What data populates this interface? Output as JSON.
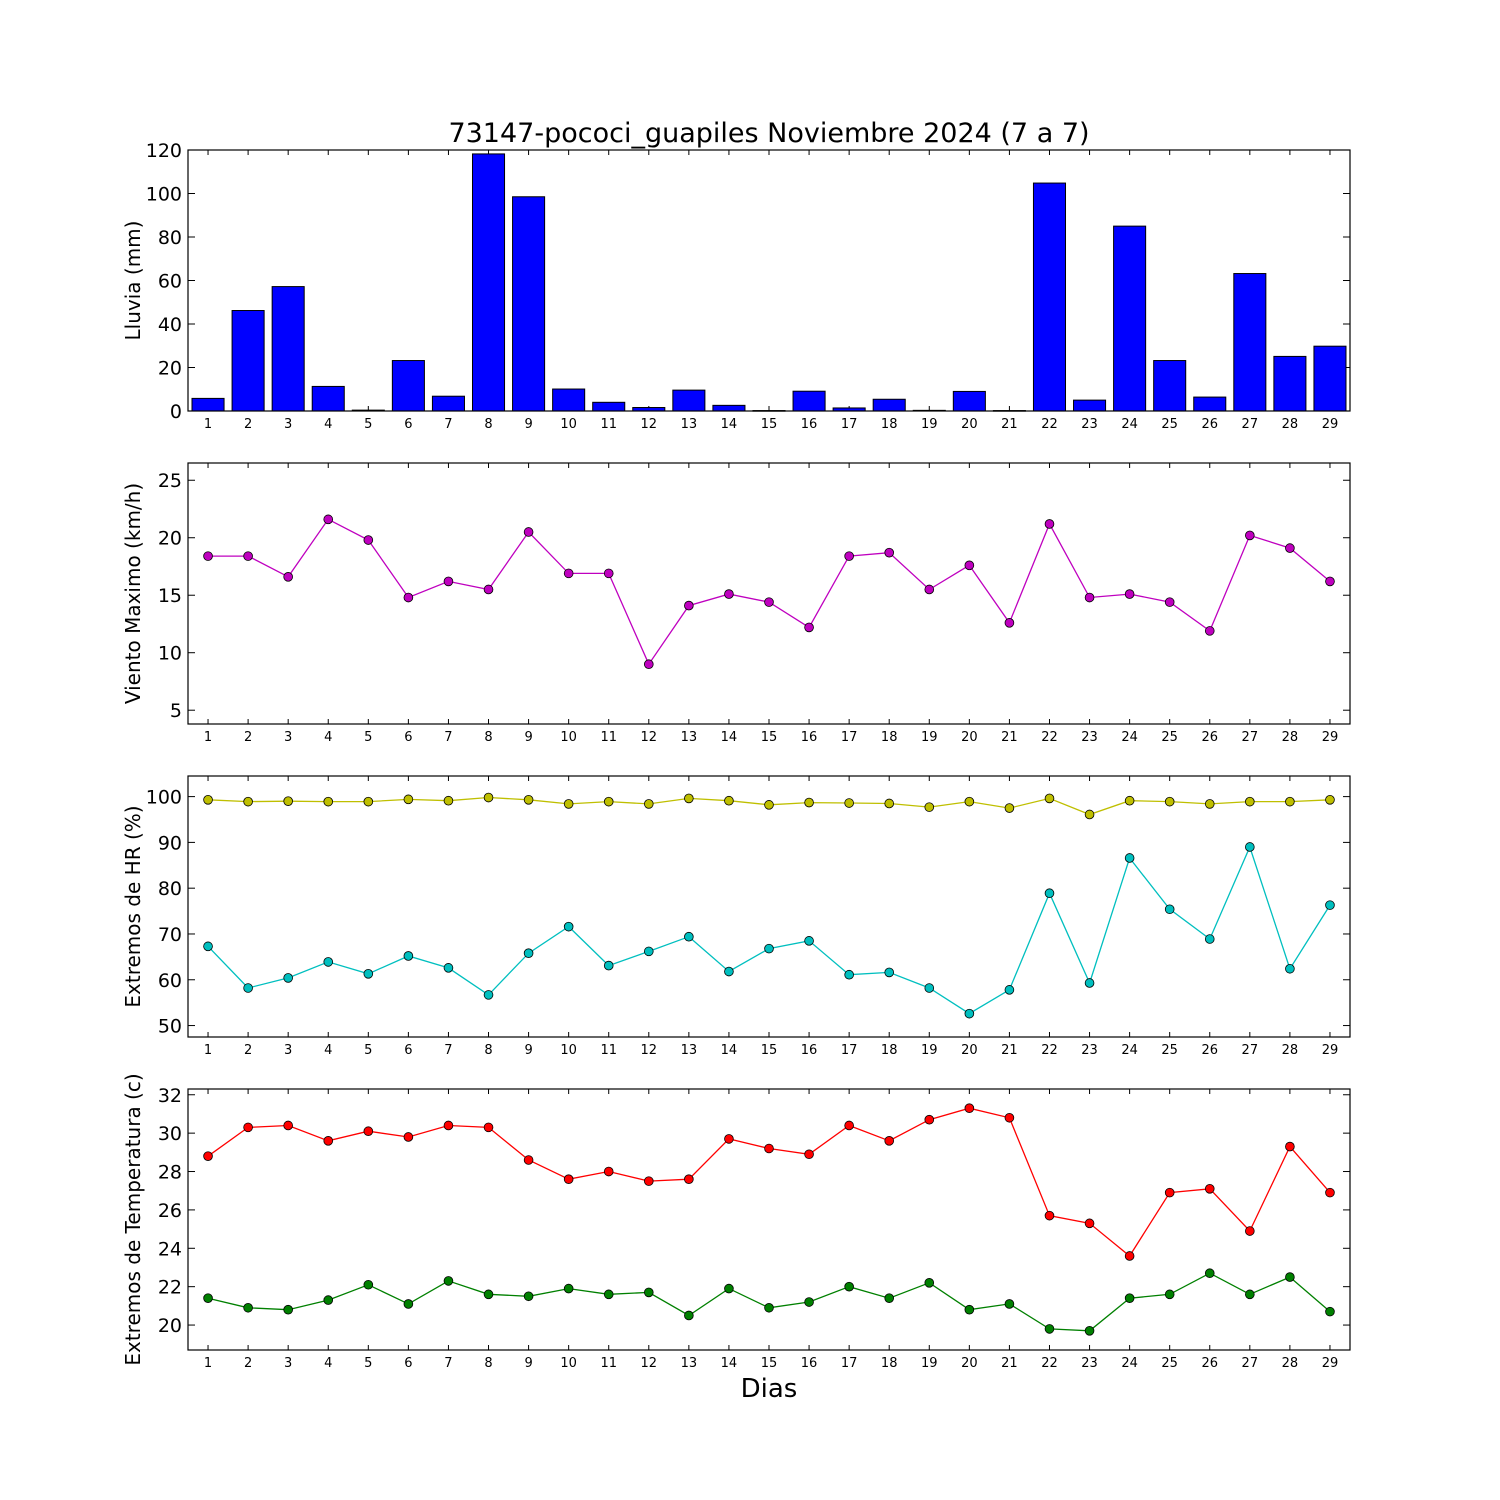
{
  "figure": {
    "title": "73147-pococi_guapiles Noviembre 2024  (7 a 7)",
    "xlabel": "Dias"
  },
  "chart_data": [
    {
      "type": "bar",
      "ylabel": "Lluvia (mm)",
      "ylim": [
        0,
        120
      ],
      "yticks": [
        0,
        20,
        40,
        60,
        80,
        100,
        120
      ],
      "categories": [
        "1",
        "2",
        "3",
        "4",
        "5",
        "6",
        "7",
        "8",
        "9",
        "10",
        "11",
        "12",
        "13",
        "14",
        "15",
        "16",
        "17",
        "18",
        "19",
        "20",
        "21",
        "22",
        "23",
        "24",
        "25",
        "26",
        "27",
        "28",
        "29"
      ],
      "series": [
        {
          "color": "#0000ff",
          "values": [
            5.8,
            46.2,
            57.2,
            11.3,
            0.4,
            23.2,
            6.8,
            118.2,
            98.5,
            10.1,
            4.0,
            1.6,
            9.6,
            2.6,
            0.2,
            9.1,
            1.4,
            5.4,
            0.3,
            9.0,
            0.2,
            104.8,
            5.0,
            85.0,
            23.2,
            6.4,
            63.2,
            25.1,
            29.8
          ]
        }
      ],
      "grid": false
    },
    {
      "type": "line",
      "ylabel": "Viento Maximo (km/h)",
      "ylim": [
        3.8,
        26.5
      ],
      "yticks": [
        5,
        10,
        15,
        20,
        25
      ],
      "categories": [
        "1",
        "2",
        "3",
        "4",
        "5",
        "6",
        "7",
        "8",
        "9",
        "10",
        "11",
        "12",
        "13",
        "14",
        "15",
        "16",
        "17",
        "18",
        "19",
        "20",
        "21",
        "22",
        "23",
        "24",
        "25",
        "26",
        "27",
        "28",
        "29"
      ],
      "series": [
        {
          "color": "#bf00bf",
          "values": [
            18.4,
            18.4,
            16.6,
            21.6,
            19.8,
            14.8,
            16.2,
            15.5,
            20.5,
            16.9,
            16.9,
            9.0,
            14.1,
            15.1,
            14.4,
            12.2,
            18.4,
            18.7,
            15.5,
            17.6,
            12.6,
            21.2,
            14.8,
            15.1,
            14.4,
            11.9,
            20.2,
            19.1,
            16.2
          ]
        }
      ],
      "grid": false
    },
    {
      "type": "line",
      "ylabel": "Extremos de HR (%)",
      "ylim": [
        47.5,
        104.5
      ],
      "yticks": [
        50,
        60,
        70,
        80,
        90,
        100
      ],
      "categories": [
        "1",
        "2",
        "3",
        "4",
        "5",
        "6",
        "7",
        "8",
        "9",
        "10",
        "11",
        "12",
        "13",
        "14",
        "15",
        "16",
        "17",
        "18",
        "19",
        "20",
        "21",
        "22",
        "23",
        "24",
        "25",
        "26",
        "27",
        "28",
        "29"
      ],
      "series": [
        {
          "color": "#bfbf00",
          "values": [
            99.3,
            98.9,
            99.0,
            98.9,
            98.9,
            99.4,
            99.1,
            99.8,
            99.3,
            98.4,
            98.9,
            98.4,
            99.6,
            99.1,
            98.2,
            98.7,
            98.6,
            98.5,
            97.7,
            98.9,
            97.5,
            99.6,
            96.1,
            99.1,
            98.9,
            98.4,
            98.9,
            98.9,
            99.3
          ]
        },
        {
          "color": "#00bfbf",
          "values": [
            67.3,
            58.2,
            60.4,
            63.9,
            61.3,
            65.2,
            62.6,
            56.7,
            65.8,
            71.6,
            63.1,
            66.2,
            69.4,
            61.8,
            66.8,
            68.5,
            61.1,
            61.6,
            58.2,
            52.6,
            57.8,
            78.9,
            59.3,
            86.6,
            75.4,
            68.9,
            89.0,
            62.4,
            76.3
          ]
        }
      ],
      "grid": false
    },
    {
      "type": "line",
      "ylabel": "Extremos de Temperatura (c)",
      "ylim": [
        18.7,
        32.3
      ],
      "yticks": [
        20,
        22,
        24,
        26,
        28,
        30,
        32
      ],
      "categories": [
        "1",
        "2",
        "3",
        "4",
        "5",
        "6",
        "7",
        "8",
        "9",
        "10",
        "11",
        "12",
        "13",
        "14",
        "15",
        "16",
        "17",
        "18",
        "19",
        "20",
        "21",
        "22",
        "23",
        "24",
        "25",
        "26",
        "27",
        "28",
        "29"
      ],
      "series": [
        {
          "color": "#ff0000",
          "values": [
            28.8,
            30.3,
            30.4,
            29.6,
            30.1,
            29.8,
            30.4,
            30.3,
            28.6,
            27.6,
            28.0,
            27.5,
            27.6,
            29.7,
            29.2,
            28.9,
            30.4,
            29.6,
            30.7,
            31.3,
            30.8,
            25.7,
            25.3,
            23.6,
            26.9,
            27.1,
            24.9,
            29.3,
            26.9
          ]
        },
        {
          "color": "#008000",
          "values": [
            21.4,
            20.9,
            20.8,
            21.3,
            22.1,
            21.1,
            22.3,
            21.6,
            21.5,
            21.9,
            21.6,
            21.7,
            20.5,
            21.9,
            20.9,
            21.2,
            22.0,
            21.4,
            22.2,
            20.8,
            21.1,
            19.8,
            19.7,
            21.4,
            21.6,
            22.7,
            21.6,
            22.5,
            20.7
          ]
        }
      ],
      "grid": false
    }
  ]
}
